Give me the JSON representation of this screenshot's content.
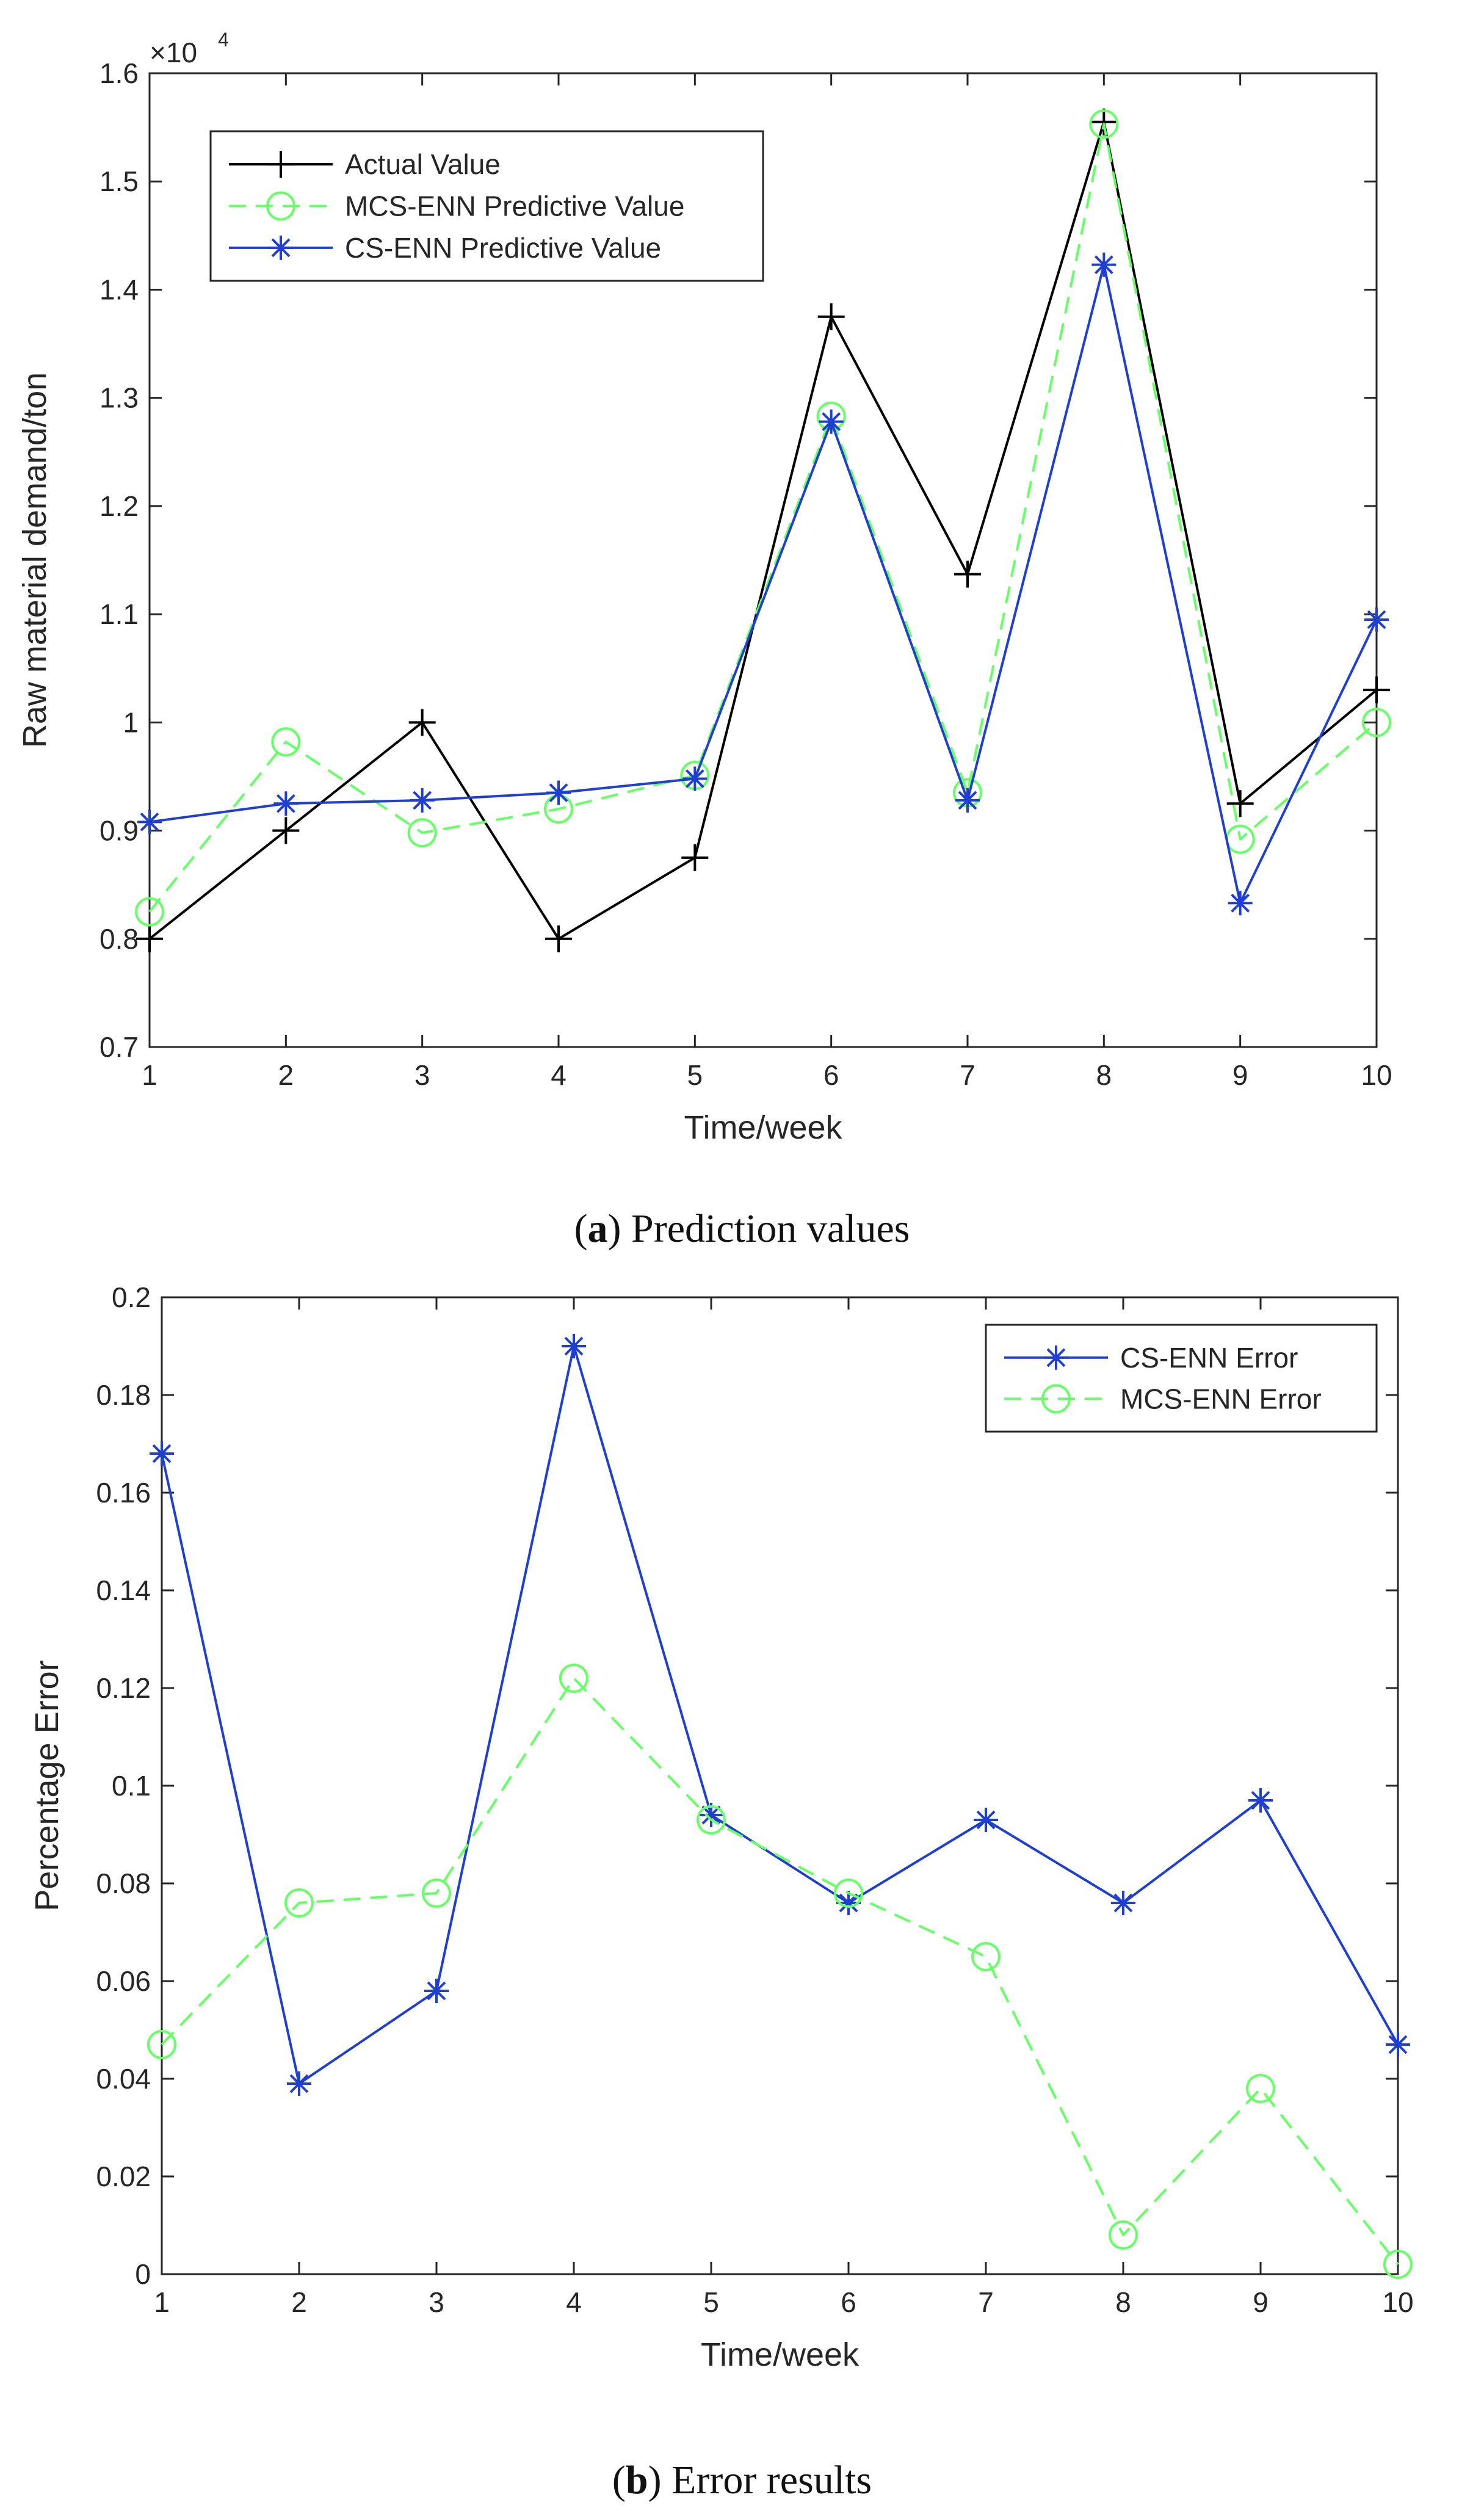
{
  "chart_data": [
    {
      "type": "line",
      "caption_letter": "a",
      "caption_text": "Prediction values",
      "xlabel": "Time/week",
      "ylabel": "Raw material demand/ton",
      "xlim": [
        1,
        10
      ],
      "ylim": [
        0.7,
        1.6
      ],
      "exponent_text": "×10",
      "exponent_power": "4",
      "x_ticks": [
        1,
        2,
        3,
        4,
        5,
        6,
        7,
        8,
        9,
        10
      ],
      "x_tick_labels": [
        "1",
        "2",
        "3",
        "4",
        "5",
        "6",
        "7",
        "8",
        "9",
        "10"
      ],
      "y_ticks": [
        0.7,
        0.8,
        0.9,
        1.0,
        1.1,
        1.2,
        1.3,
        1.4,
        1.5,
        1.6
      ],
      "y_tick_labels": [
        "0.7",
        "0.8",
        "0.9",
        "1",
        "1.1",
        "1.2",
        "1.3",
        "1.4",
        "1.5",
        "1.6"
      ],
      "legend_position": "top-left",
      "x": [
        1,
        2,
        3,
        4,
        5,
        6,
        7,
        8,
        9,
        10
      ],
      "series": [
        {
          "name": "Actual Value",
          "color": "#000000",
          "marker": "plus",
          "dash": "solid",
          "values": [
            0.8,
            0.9,
            1.0,
            0.8,
            0.875,
            1.375,
            1.137,
            1.555,
            0.925,
            1.03
          ]
        },
        {
          "name": "MCS-ENN Predictive Value",
          "color": "#66ff66",
          "marker": "circle",
          "dash": "dashed",
          "values": [
            0.825,
            0.982,
            0.898,
            0.92,
            0.951,
            1.283,
            0.935,
            1.553,
            0.892,
            1.0
          ]
        },
        {
          "name": "CS-ENN Predictive Value",
          "color": "#1f3fd1",
          "marker": "asterisk",
          "dash": "solid",
          "values": [
            0.908,
            0.925,
            0.928,
            0.935,
            0.948,
            1.278,
            0.928,
            1.423,
            0.833,
            1.095
          ]
        }
      ]
    },
    {
      "type": "line",
      "caption_letter": "b",
      "caption_text": "Error results",
      "xlabel": "Time/week",
      "ylabel": "Percentage Error",
      "xlim": [
        1,
        10
      ],
      "ylim": [
        0,
        0.2
      ],
      "x_ticks": [
        1,
        2,
        3,
        4,
        5,
        6,
        7,
        8,
        9,
        10
      ],
      "x_tick_labels": [
        "1",
        "2",
        "3",
        "4",
        "5",
        "6",
        "7",
        "8",
        "9",
        "10"
      ],
      "y_ticks": [
        0,
        0.02,
        0.04,
        0.06,
        0.08,
        0.1,
        0.12,
        0.14,
        0.16,
        0.18,
        0.2
      ],
      "y_tick_labels": [
        "0",
        "0.02",
        "0.04",
        "0.06",
        "0.08",
        "0.1",
        "0.12",
        "0.14",
        "0.16",
        "0.18",
        "0.2"
      ],
      "legend_position": "top-right",
      "x": [
        1,
        2,
        3,
        4,
        5,
        6,
        7,
        8,
        9,
        10
      ],
      "series": [
        {
          "name": "CS-ENN Error",
          "color": "#1f3fd1",
          "marker": "asterisk",
          "dash": "solid",
          "values": [
            0.168,
            0.039,
            0.058,
            0.19,
            0.094,
            0.076,
            0.093,
            0.076,
            0.097,
            0.047
          ]
        },
        {
          "name": "MCS-ENN Error",
          "color": "#66ff66",
          "marker": "circle",
          "dash": "dashed",
          "values": [
            0.047,
            0.076,
            0.078,
            0.122,
            0.093,
            0.078,
            0.065,
            0.008,
            0.038,
            0.002
          ]
        }
      ]
    }
  ]
}
